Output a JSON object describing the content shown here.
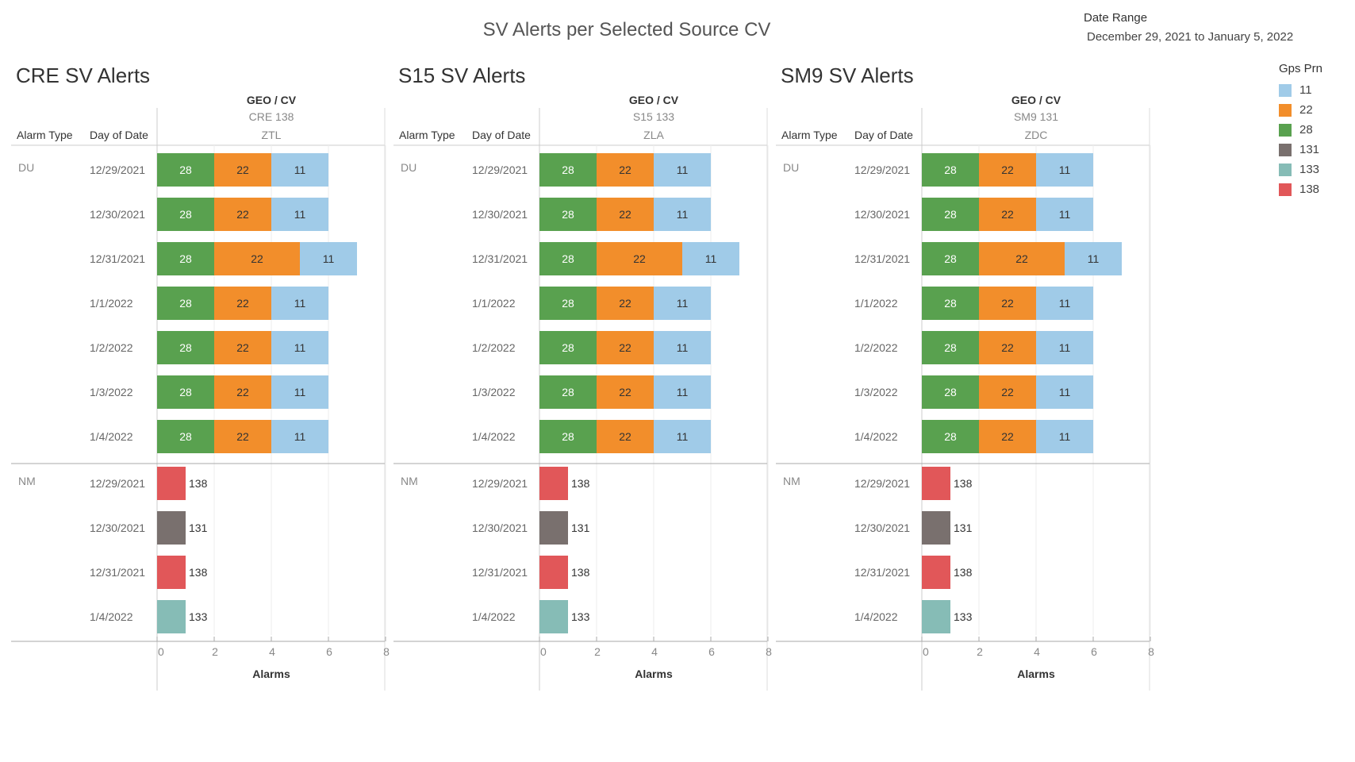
{
  "header": {
    "title": "SV Alerts per Selected Source CV",
    "date_range_label": "Date Range",
    "date_range_value": "December 29, 2021 to January 5, 2022"
  },
  "legend": {
    "title": "Gps Prn",
    "items": [
      {
        "label": "11",
        "color": "#a0cbe8"
      },
      {
        "label": "22",
        "color": "#f28e2b"
      },
      {
        "label": "28",
        "color": "#59a14f"
      },
      {
        "label": "131",
        "color": "#79706e"
      },
      {
        "label": "133",
        "color": "#86bcb6"
      },
      {
        "label": "138",
        "color": "#e15759"
      }
    ]
  },
  "table_headers": {
    "alarm_type": "Alarm Type",
    "day_of_date": "Day of Date",
    "geo_cv": "GEO  /  CV"
  },
  "chart_data": [
    {
      "type": "bar",
      "title": "CRE SV Alerts",
      "cv": "CRE 138",
      "geo": "ZTL",
      "xlabel": "Alarms",
      "xlim": [
        0,
        8
      ],
      "ticks": [
        "0",
        "2",
        "4",
        "6",
        "8"
      ],
      "groups": [
        {
          "alarm_type": "DU",
          "rows": [
            {
              "date": "12/29/2021",
              "segments": [
                {
                  "prn": "28",
                  "value": 2
                },
                {
                  "prn": "22",
                  "value": 2
                },
                {
                  "prn": "11",
                  "value": 2
                }
              ]
            },
            {
              "date": "12/30/2021",
              "segments": [
                {
                  "prn": "28",
                  "value": 2
                },
                {
                  "prn": "22",
                  "value": 2
                },
                {
                  "prn": "11",
                  "value": 2
                }
              ]
            },
            {
              "date": "12/31/2021",
              "segments": [
                {
                  "prn": "28",
                  "value": 2
                },
                {
                  "prn": "22",
                  "value": 3
                },
                {
                  "prn": "11",
                  "value": 2
                }
              ]
            },
            {
              "date": "1/1/2022",
              "segments": [
                {
                  "prn": "28",
                  "value": 2
                },
                {
                  "prn": "22",
                  "value": 2
                },
                {
                  "prn": "11",
                  "value": 2
                }
              ]
            },
            {
              "date": "1/2/2022",
              "segments": [
                {
                  "prn": "28",
                  "value": 2
                },
                {
                  "prn": "22",
                  "value": 2
                },
                {
                  "prn": "11",
                  "value": 2
                }
              ]
            },
            {
              "date": "1/3/2022",
              "segments": [
                {
                  "prn": "28",
                  "value": 2
                },
                {
                  "prn": "22",
                  "value": 2
                },
                {
                  "prn": "11",
                  "value": 2
                }
              ]
            },
            {
              "date": "1/4/2022",
              "segments": [
                {
                  "prn": "28",
                  "value": 2
                },
                {
                  "prn": "22",
                  "value": 2
                },
                {
                  "prn": "11",
                  "value": 2
                }
              ]
            }
          ]
        },
        {
          "alarm_type": "NM",
          "rows": [
            {
              "date": "12/29/2021",
              "segments": [
                {
                  "prn": "138",
                  "value": 1
                }
              ]
            },
            {
              "date": "12/30/2021",
              "segments": [
                {
                  "prn": "131",
                  "value": 1
                }
              ]
            },
            {
              "date": "12/31/2021",
              "segments": [
                {
                  "prn": "138",
                  "value": 1
                }
              ]
            },
            {
              "date": "1/4/2022",
              "segments": [
                {
                  "prn": "133",
                  "value": 1
                }
              ]
            }
          ]
        }
      ]
    },
    {
      "type": "bar",
      "title": "S15 SV Alerts",
      "cv": "S15 133",
      "geo": "ZLA",
      "xlabel": "Alarms",
      "xlim": [
        0,
        8
      ],
      "ticks": [
        "0",
        "2",
        "4",
        "6",
        "8"
      ],
      "groups": [
        {
          "alarm_type": "DU",
          "rows": [
            {
              "date": "12/29/2021",
              "segments": [
                {
                  "prn": "28",
                  "value": 2
                },
                {
                  "prn": "22",
                  "value": 2
                },
                {
                  "prn": "11",
                  "value": 2
                }
              ]
            },
            {
              "date": "12/30/2021",
              "segments": [
                {
                  "prn": "28",
                  "value": 2
                },
                {
                  "prn": "22",
                  "value": 2
                },
                {
                  "prn": "11",
                  "value": 2
                }
              ]
            },
            {
              "date": "12/31/2021",
              "segments": [
                {
                  "prn": "28",
                  "value": 2
                },
                {
                  "prn": "22",
                  "value": 3
                },
                {
                  "prn": "11",
                  "value": 2
                }
              ]
            },
            {
              "date": "1/1/2022",
              "segments": [
                {
                  "prn": "28",
                  "value": 2
                },
                {
                  "prn": "22",
                  "value": 2
                },
                {
                  "prn": "11",
                  "value": 2
                }
              ]
            },
            {
              "date": "1/2/2022",
              "segments": [
                {
                  "prn": "28",
                  "value": 2
                },
                {
                  "prn": "22",
                  "value": 2
                },
                {
                  "prn": "11",
                  "value": 2
                }
              ]
            },
            {
              "date": "1/3/2022",
              "segments": [
                {
                  "prn": "28",
                  "value": 2
                },
                {
                  "prn": "22",
                  "value": 2
                },
                {
                  "prn": "11",
                  "value": 2
                }
              ]
            },
            {
              "date": "1/4/2022",
              "segments": [
                {
                  "prn": "28",
                  "value": 2
                },
                {
                  "prn": "22",
                  "value": 2
                },
                {
                  "prn": "11",
                  "value": 2
                }
              ]
            }
          ]
        },
        {
          "alarm_type": "NM",
          "rows": [
            {
              "date": "12/29/2021",
              "segments": [
                {
                  "prn": "138",
                  "value": 1
                }
              ]
            },
            {
              "date": "12/30/2021",
              "segments": [
                {
                  "prn": "131",
                  "value": 1
                }
              ]
            },
            {
              "date": "12/31/2021",
              "segments": [
                {
                  "prn": "138",
                  "value": 1
                }
              ]
            },
            {
              "date": "1/4/2022",
              "segments": [
                {
                  "prn": "133",
                  "value": 1
                }
              ]
            }
          ]
        }
      ]
    },
    {
      "type": "bar",
      "title": "SM9 SV Alerts",
      "cv": "SM9 131",
      "geo": "ZDC",
      "xlabel": "Alarms",
      "xlim": [
        0,
        8
      ],
      "ticks": [
        "0",
        "2",
        "4",
        "6",
        "8"
      ],
      "groups": [
        {
          "alarm_type": "DU",
          "rows": [
            {
              "date": "12/29/2021",
              "segments": [
                {
                  "prn": "28",
                  "value": 2
                },
                {
                  "prn": "22",
                  "value": 2
                },
                {
                  "prn": "11",
                  "value": 2
                }
              ]
            },
            {
              "date": "12/30/2021",
              "segments": [
                {
                  "prn": "28",
                  "value": 2
                },
                {
                  "prn": "22",
                  "value": 2
                },
                {
                  "prn": "11",
                  "value": 2
                }
              ]
            },
            {
              "date": "12/31/2021",
              "segments": [
                {
                  "prn": "28",
                  "value": 2
                },
                {
                  "prn": "22",
                  "value": 3
                },
                {
                  "prn": "11",
                  "value": 2
                }
              ]
            },
            {
              "date": "1/1/2022",
              "segments": [
                {
                  "prn": "28",
                  "value": 2
                },
                {
                  "prn": "22",
                  "value": 2
                },
                {
                  "prn": "11",
                  "value": 2
                }
              ]
            },
            {
              "date": "1/2/2022",
              "segments": [
                {
                  "prn": "28",
                  "value": 2
                },
                {
                  "prn": "22",
                  "value": 2
                },
                {
                  "prn": "11",
                  "value": 2
                }
              ]
            },
            {
              "date": "1/3/2022",
              "segments": [
                {
                  "prn": "28",
                  "value": 2
                },
                {
                  "prn": "22",
                  "value": 2
                },
                {
                  "prn": "11",
                  "value": 2
                }
              ]
            },
            {
              "date": "1/4/2022",
              "segments": [
                {
                  "prn": "28",
                  "value": 2
                },
                {
                  "prn": "22",
                  "value": 2
                },
                {
                  "prn": "11",
                  "value": 2
                }
              ]
            }
          ]
        },
        {
          "alarm_type": "NM",
          "rows": [
            {
              "date": "12/29/2021",
              "segments": [
                {
                  "prn": "138",
                  "value": 1
                }
              ]
            },
            {
              "date": "12/30/2021",
              "segments": [
                {
                  "prn": "131",
                  "value": 1
                }
              ]
            },
            {
              "date": "12/31/2021",
              "segments": [
                {
                  "prn": "138",
                  "value": 1
                }
              ]
            },
            {
              "date": "1/4/2022",
              "segments": [
                {
                  "prn": "133",
                  "value": 1
                }
              ]
            }
          ]
        }
      ]
    }
  ]
}
